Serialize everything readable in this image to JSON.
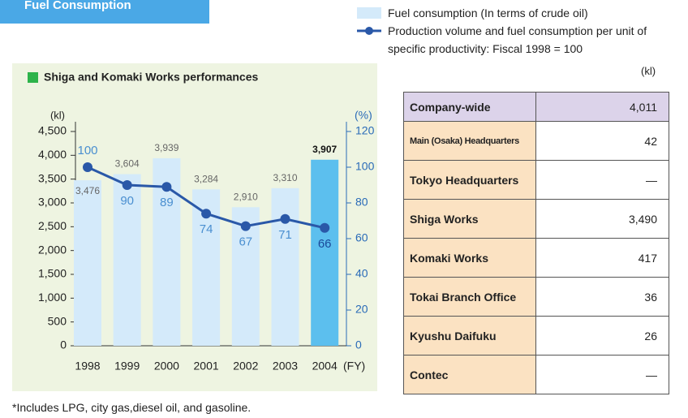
{
  "header": "Fuel Consumption",
  "chart_data": {
    "type": "bar",
    "title": "Shiga and Komaki Works performances",
    "y_label": "(kl)",
    "y2_label": "(%)",
    "x_label": "(FY)",
    "categories": [
      "1998",
      "1999",
      "2000",
      "2001",
      "2002",
      "2003",
      "2004"
    ],
    "series": [
      {
        "name": "Fuel consumption (In terms of crude oil)",
        "type": "bar",
        "color": "#d4eafa",
        "highlight_color": "#5cbfee",
        "values": [
          3476,
          3604,
          3939,
          3284,
          2910,
          3310,
          3907
        ],
        "value_labels": [
          "3,476",
          "3,604",
          "3,939",
          "3,284",
          "2,910",
          "3,310",
          "3,907"
        ]
      },
      {
        "name": "Production volume and fuel consumption per unit of specific productivity: Fiscal 1998 = 100",
        "type": "line",
        "axis": "y2",
        "color": "#2a58a8",
        "values": [
          100,
          90,
          89,
          74,
          67,
          71,
          66
        ]
      }
    ],
    "ylim": [
      0,
      4500
    ],
    "yticks": [
      0,
      500,
      {
        "value": 1000,
        "label": "1,000"
      },
      {
        "value": 1500,
        "label": "1,500"
      },
      {
        "value": 2000,
        "label": "2,000"
      },
      {
        "value": 2500,
        "label": "2,500"
      },
      {
        "value": 3000,
        "label": "3,000"
      },
      {
        "value": 3500,
        "label": "3,500"
      },
      {
        "value": 4000,
        "label": "4,000"
      },
      {
        "value": 4500,
        "label": "4,500"
      }
    ],
    "y2lim": [
      0,
      120
    ],
    "y2ticks": [
      0,
      20,
      40,
      60,
      80,
      100,
      120
    ],
    "grid": false
  },
  "table": {
    "unit": "(kl)",
    "rows": [
      [
        "Company-wide",
        "4,011"
      ],
      [
        "Main (Osaka) Headquarters",
        "42"
      ],
      [
        "Tokyo Headquarters",
        "—"
      ],
      [
        "Shiga Works",
        "3,490"
      ],
      [
        "Komaki Works",
        "417"
      ],
      [
        "Tokai Branch Office",
        "36"
      ],
      [
        "Kyushu Daifuku",
        "26"
      ],
      [
        "Contec",
        "—"
      ]
    ]
  },
  "footnote": "*Includes LPG, city gas,diesel oil, and gasoline."
}
